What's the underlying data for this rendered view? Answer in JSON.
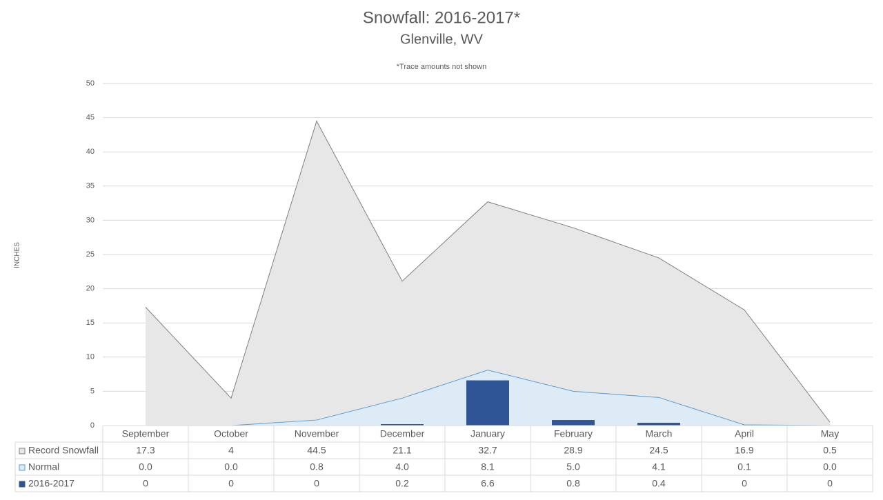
{
  "chart_data": {
    "type": "combo",
    "title": "Snowfall: 2016-2017*",
    "subtitle": "Glenville, WV",
    "note": "*Trace amounts not shown",
    "y_label": "INCHES",
    "categories": [
      "September",
      "October",
      "November",
      "December",
      "January",
      "February",
      "March",
      "April",
      "May"
    ],
    "series": [
      {
        "name": "Record Snowfall",
        "type": "area",
        "color": "#e7e7e7",
        "line_color": "#7f7f7f",
        "values": [
          17.3,
          4,
          44.5,
          21.1,
          32.7,
          28.9,
          24.5,
          16.9,
          0.5
        ]
      },
      {
        "name": "Normal",
        "type": "area",
        "color": "#ddebf7",
        "line_color": "#5b9bd5",
        "values": [
          0,
          0,
          0.8,
          4,
          8.1,
          5,
          4.1,
          0.1,
          0
        ],
        "value_labels": [
          "0.0",
          "0.0",
          "0.8",
          "4.0",
          "8.1",
          "5.0",
          "4.1",
          "0.1",
          "0.0"
        ]
      },
      {
        "name": "2016-2017",
        "type": "bar",
        "color": "#2f5597",
        "values": [
          0,
          0,
          0,
          0.2,
          6.6,
          0.8,
          0.4,
          0,
          0
        ]
      }
    ],
    "ylim": [
      0,
      50
    ],
    "yticks": [
      0,
      5,
      10,
      15,
      20,
      25,
      30,
      35,
      40,
      45,
      50
    ],
    "grid": true
  }
}
